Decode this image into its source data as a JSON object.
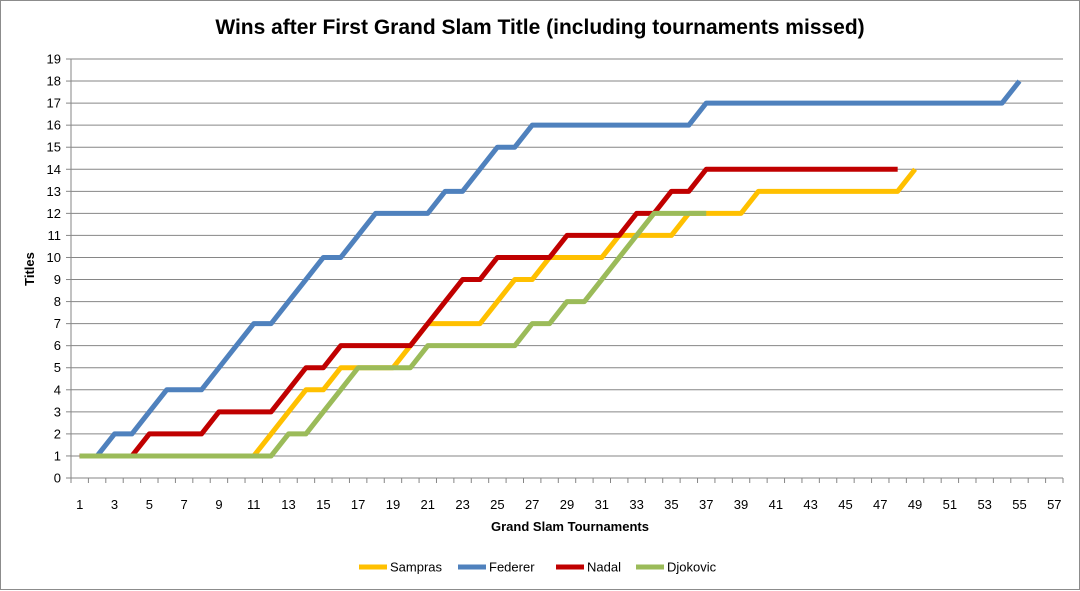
{
  "chart_data": {
    "type": "line",
    "title": "Wins after First Grand Slam Title (including tournaments missed)",
    "xlabel": "Grand Slam Tournaments",
    "ylabel": "Titles",
    "xlim": [
      1,
      58
    ],
    "ylim": [
      0,
      19
    ],
    "xticks": [
      1,
      3,
      5,
      7,
      9,
      11,
      13,
      15,
      17,
      19,
      21,
      23,
      25,
      27,
      29,
      31,
      33,
      35,
      37,
      39,
      41,
      43,
      45,
      47,
      49,
      51,
      53,
      55,
      57
    ],
    "yticks": [
      0,
      1,
      2,
      3,
      4,
      5,
      6,
      7,
      8,
      9,
      10,
      11,
      12,
      13,
      14,
      15,
      16,
      17,
      18,
      19
    ],
    "grid": "horizontal",
    "legend_position": "bottom",
    "series": [
      {
        "name": "Sampras",
        "color": "#FFC000",
        "values": [
          1,
          1,
          1,
          1,
          1,
          1,
          1,
          1,
          1,
          1,
          1,
          2,
          3,
          4,
          4,
          5,
          5,
          5,
          5,
          6,
          7,
          7,
          7,
          7,
          8,
          9,
          9,
          10,
          10,
          10,
          10,
          11,
          11,
          11,
          11,
          12,
          12,
          12,
          12,
          13,
          13,
          13,
          13,
          13,
          13,
          13,
          13,
          13,
          14
        ]
      },
      {
        "name": "Federer",
        "color": "#4F81BD",
        "values": [
          1,
          1,
          2,
          2,
          3,
          4,
          4,
          4,
          5,
          6,
          7,
          7,
          8,
          9,
          10,
          10,
          11,
          12,
          12,
          12,
          12,
          13,
          13,
          14,
          15,
          15,
          16,
          16,
          16,
          16,
          16,
          16,
          16,
          16,
          16,
          16,
          17,
          17,
          17,
          17,
          17,
          17,
          17,
          17,
          17,
          17,
          17,
          17,
          17,
          17,
          17,
          17,
          17,
          17,
          18
        ]
      },
      {
        "name": "Nadal",
        "color": "#C00000",
        "values": [
          1,
          1,
          1,
          1,
          2,
          2,
          2,
          2,
          3,
          3,
          3,
          3,
          4,
          5,
          5,
          6,
          6,
          6,
          6,
          6,
          7,
          8,
          9,
          9,
          10,
          10,
          10,
          10,
          11,
          11,
          11,
          11,
          12,
          12,
          13,
          13,
          14,
          14,
          14,
          14,
          14,
          14,
          14,
          14,
          14,
          14,
          14,
          14
        ]
      },
      {
        "name": "Djokovic",
        "color": "#9BBB59",
        "values": [
          1,
          1,
          1,
          1,
          1,
          1,
          1,
          1,
          1,
          1,
          1,
          1,
          2,
          2,
          3,
          4,
          5,
          5,
          5,
          5,
          6,
          6,
          6,
          6,
          6,
          6,
          7,
          7,
          8,
          8,
          9,
          10,
          11,
          12,
          12,
          12,
          12
        ]
      }
    ]
  }
}
